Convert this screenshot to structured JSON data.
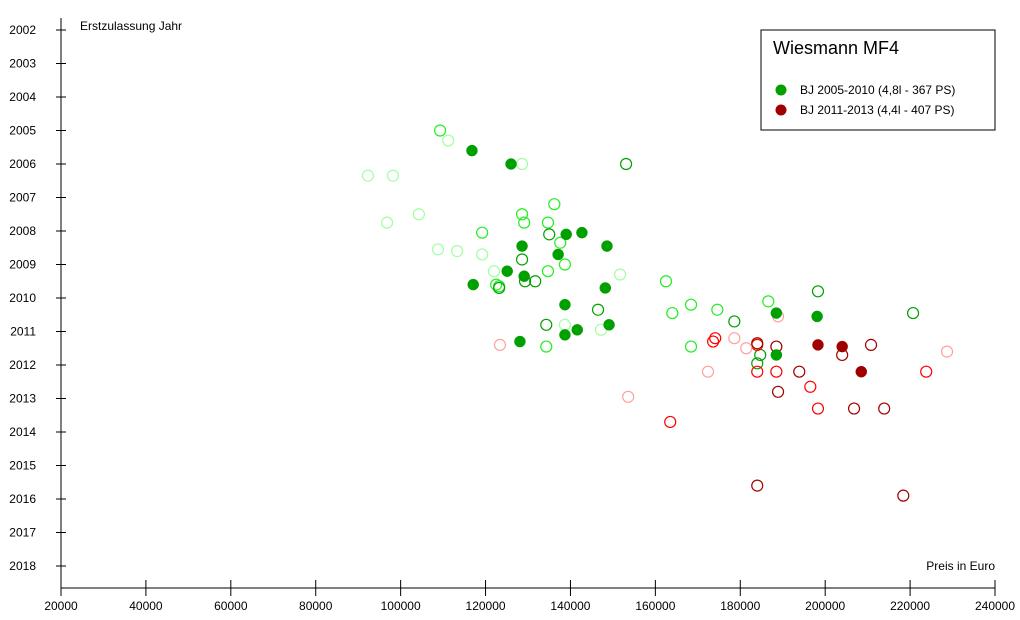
{
  "chart_data": {
    "type": "scatter",
    "title": "Wiesmann MF4",
    "xlabel": "Preis in Euro",
    "ylabel": "Erstzulassung Jahr",
    "xlim": [
      20000,
      240000
    ],
    "ylim": [
      2002,
      2018.65
    ],
    "y_inverted": true,
    "x_ticks": [
      "20000",
      "40000",
      "60000",
      "80000",
      "100000",
      "120000",
      "140000",
      "160000",
      "180000",
      "200000",
      "220000",
      "240000"
    ],
    "y_ticks": [
      "2002",
      "2003",
      "2004",
      "2005",
      "2006",
      "2007",
      "2008",
      "2009",
      "2010",
      "2011",
      "2012",
      "2013",
      "2014",
      "2015",
      "2016",
      "2017",
      "2018"
    ],
    "grid": false,
    "legend_position": "top-right",
    "legend": [
      {
        "label": "BJ 2005-2010 (4,8l - 367 PS)",
        "color": "#00a000"
      },
      {
        "label": "BJ 2011-2013 (4,4l - 407 PS)",
        "color": "#a00000"
      }
    ],
    "series": [
      {
        "name": "BJ 2005-2010 (4,8l - 367 PS)",
        "marker": "filled",
        "color": "#00a000",
        "points": [
          [
            116800,
            2005.6
          ],
          [
            126000,
            2006.0
          ],
          [
            139000,
            2008.1
          ],
          [
            142700,
            2008.05
          ],
          [
            128600,
            2008.45
          ],
          [
            148600,
            2008.45
          ],
          [
            137100,
            2008.7
          ],
          [
            125100,
            2009.2
          ],
          [
            129100,
            2009.35
          ],
          [
            117100,
            2009.6
          ],
          [
            148200,
            2009.7
          ],
          [
            138700,
            2010.2
          ],
          [
            149100,
            2010.8
          ],
          [
            141600,
            2010.95
          ],
          [
            138700,
            2011.1
          ],
          [
            128100,
            2011.3
          ],
          [
            188500,
            2010.45
          ],
          [
            198100,
            2010.55
          ],
          [
            188500,
            2011.7
          ]
        ]
      },
      {
        "name": "BJ 2011-2013 (4,4l - 407 PS)",
        "marker": "filled",
        "color": "#a00000",
        "points": [
          [
            198300,
            2011.4
          ],
          [
            204000,
            2011.45
          ],
          [
            208500,
            2012.2
          ]
        ]
      },
      {
        "name": "open-lime",
        "marker": "open",
        "color": "#22ee22",
        "points": [
          [
            109300,
            2005.0
          ],
          [
            136200,
            2007.2
          ],
          [
            128600,
            2007.5
          ],
          [
            129100,
            2007.75
          ],
          [
            134700,
            2007.75
          ],
          [
            119200,
            2008.05
          ],
          [
            137600,
            2008.35
          ],
          [
            138700,
            2009.0
          ],
          [
            134700,
            2009.2
          ],
          [
            162500,
            2009.5
          ],
          [
            122500,
            2009.6
          ],
          [
            123200,
            2009.65
          ],
          [
            164000,
            2010.45
          ],
          [
            134300,
            2011.45
          ],
          [
            168400,
            2010.2
          ],
          [
            174600,
            2010.35
          ],
          [
            186600,
            2010.1
          ],
          [
            168400,
            2011.45
          ]
        ]
      },
      {
        "name": "open-lightgreen",
        "marker": "open",
        "color": "#a0ffa0",
        "points": [
          [
            111200,
            2005.3
          ],
          [
            128600,
            2006.0
          ],
          [
            92300,
            2006.35
          ],
          [
            98200,
            2006.35
          ],
          [
            104300,
            2007.5
          ],
          [
            96800,
            2007.75
          ],
          [
            108800,
            2008.55
          ],
          [
            113300,
            2008.6
          ],
          [
            119200,
            2008.7
          ],
          [
            122000,
            2009.2
          ],
          [
            151700,
            2009.3
          ],
          [
            138700,
            2010.8
          ],
          [
            147200,
            2010.95
          ]
        ]
      },
      {
        "name": "open-darkgreen",
        "marker": "open",
        "color": "#00a000",
        "points": [
          [
            153100,
            2006.0
          ],
          [
            135000,
            2008.1
          ],
          [
            128600,
            2008.85
          ],
          [
            129300,
            2009.5
          ],
          [
            131700,
            2009.5
          ],
          [
            146500,
            2010.35
          ],
          [
            134300,
            2010.8
          ],
          [
            198300,
            2009.8
          ],
          [
            220700,
            2010.45
          ],
          [
            178600,
            2010.7
          ],
          [
            184700,
            2011.7
          ],
          [
            184000,
            2011.95
          ],
          [
            123200,
            2009.7
          ]
        ]
      },
      {
        "name": "open-red",
        "marker": "open",
        "color": "#ff0000",
        "points": [
          [
            174100,
            2011.2
          ],
          [
            173600,
            2011.3
          ],
          [
            184000,
            2011.4
          ],
          [
            184000,
            2012.2
          ],
          [
            188500,
            2012.2
          ],
          [
            223800,
            2012.2
          ],
          [
            196500,
            2012.65
          ],
          [
            198300,
            2013.3
          ],
          [
            163500,
            2013.7
          ]
        ]
      },
      {
        "name": "open-pink",
        "marker": "open",
        "color": "#ffa0a0",
        "points": [
          [
            188900,
            2010.55
          ],
          [
            178600,
            2011.2
          ],
          [
            181400,
            2011.5
          ],
          [
            228700,
            2011.6
          ],
          [
            172400,
            2012.2
          ],
          [
            153600,
            2012.95
          ],
          [
            123400,
            2011.4
          ]
        ]
      },
      {
        "name": "open-darkred",
        "marker": "open",
        "color": "#a00000",
        "points": [
          [
            184000,
            2011.35
          ],
          [
            188500,
            2011.45
          ],
          [
            210800,
            2011.4
          ],
          [
            204000,
            2011.7
          ],
          [
            193900,
            2012.2
          ],
          [
            188900,
            2012.8
          ],
          [
            206800,
            2013.3
          ],
          [
            213900,
            2013.3
          ],
          [
            184000,
            2015.6
          ],
          [
            218400,
            2015.9
          ]
        ]
      }
    ]
  }
}
